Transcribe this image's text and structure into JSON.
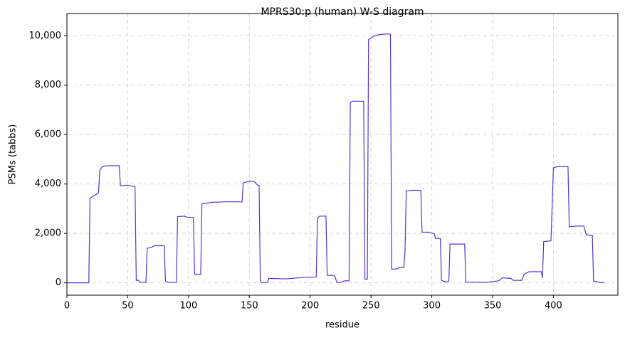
{
  "chart_data": {
    "type": "line",
    "title": "MPRS30:p (human) W-S diagram",
    "xlabel": "residue",
    "ylabel": "PSMs (tabbs)",
    "x": [
      0,
      18,
      19,
      21,
      23,
      25,
      26,
      27,
      29,
      31,
      35,
      43,
      44,
      50,
      55,
      56,
      57,
      59,
      60,
      65,
      66,
      69,
      72,
      80,
      81,
      83,
      90,
      91,
      97,
      99,
      104,
      105,
      110,
      111,
      114,
      120,
      130,
      140,
      144,
      145,
      150,
      154,
      157,
      158,
      159,
      160,
      165,
      166,
      180,
      190,
      205,
      206,
      208,
      213,
      214,
      220,
      222,
      225,
      228,
      232,
      233,
      235,
      244,
      245,
      247,
      248,
      250,
      252,
      257,
      263,
      266,
      267,
      272,
      273,
      277,
      278,
      279,
      285,
      291,
      292,
      298,
      302,
      303,
      307,
      308,
      311,
      314,
      315,
      318,
      327,
      328,
      340,
      345,
      355,
      358,
      365,
      367,
      374,
      376,
      380,
      390,
      391,
      392,
      398,
      400,
      403,
      412,
      413,
      420,
      425,
      427,
      430,
      432,
      433,
      438,
      442
    ],
    "series": [
      {
        "name": "PSMs",
        "color": "#5a32d4",
        "values": [
          0,
          0,
          3400,
          3500,
          3550,
          3600,
          3650,
          4550,
          4700,
          4730,
          4740,
          4740,
          3930,
          3950,
          3900,
          3900,
          100,
          100,
          20,
          20,
          1400,
          1430,
          1500,
          1500,
          80,
          20,
          20,
          2680,
          2700,
          2650,
          2650,
          350,
          350,
          3200,
          3220,
          3260,
          3280,
          3280,
          3270,
          4050,
          4120,
          4100,
          3950,
          3950,
          100,
          20,
          20,
          180,
          160,
          200,
          240,
          2620,
          2700,
          2700,
          300,
          300,
          20,
          20,
          80,
          80,
          7300,
          7350,
          7350,
          150,
          150,
          9850,
          9900,
          9980,
          10050,
          10070,
          10070,
          550,
          570,
          620,
          620,
          1300,
          3720,
          3750,
          3740,
          2050,
          2050,
          1980,
          1800,
          1800,
          100,
          30,
          60,
          1570,
          1570,
          1570,
          30,
          20,
          20,
          80,
          200,
          180,
          100,
          100,
          350,
          450,
          450,
          200,
          1670,
          1700,
          4650,
          4700,
          4700,
          2270,
          2300,
          2300,
          1950,
          1930,
          1930,
          70,
          20,
          0
        ]
      }
    ],
    "xlim": [
      0,
      453
    ],
    "xticks": [
      0,
      50,
      100,
      150,
      200,
      250,
      300,
      350,
      400
    ],
    "ylim": [
      -500,
      10900
    ],
    "yticks": [
      0,
      {
        "value": 2000,
        "label": "2,000"
      },
      {
        "value": 4000,
        "label": "4,000"
      },
      {
        "value": 6000,
        "label": "6,000"
      },
      {
        "value": 8000,
        "label": "8,000"
      },
      {
        "value": 10000,
        "label": "10,000"
      }
    ],
    "grid": true
  }
}
